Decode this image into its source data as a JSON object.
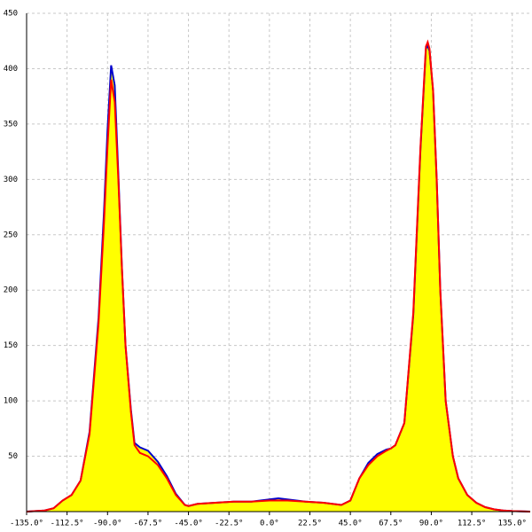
{
  "chart_data": {
    "type": "area",
    "x": [
      -135,
      -130,
      -125,
      -120,
      -115,
      -110,
      -105,
      -100,
      -95,
      -92,
      -90,
      -88,
      -86,
      -84,
      -82,
      -80,
      -77,
      -75,
      -72,
      -67.5,
      -62,
      -57,
      -52,
      -47,
      -45,
      -40,
      -30,
      -20,
      -10,
      0,
      5,
      10,
      20,
      30,
      40,
      45,
      50,
      55,
      60,
      65,
      67.5,
      70,
      75,
      80,
      84,
      87,
      88,
      89,
      91,
      93,
      95,
      98,
      102,
      105,
      110,
      115,
      120,
      125,
      130,
      135,
      145
    ],
    "series": [
      {
        "color": "#0000cc",
        "values": [
          0,
          0.5,
          1,
          3,
          10,
          15,
          28,
          72,
          175,
          270,
          345,
          403,
          385,
          305,
          220,
          150,
          92,
          62,
          58,
          55,
          45,
          32,
          16,
          6,
          5,
          7,
          8,
          9,
          9,
          11,
          12,
          11,
          9,
          8,
          6,
          10,
          30,
          44,
          52,
          56,
          57,
          60,
          80,
          178,
          328,
          418,
          421,
          416,
          380,
          300,
          200,
          100,
          50,
          30,
          15,
          8,
          4,
          2,
          1,
          0.5,
          0
        ]
      },
      {
        "color": "#ff0000",
        "values": [
          0,
          0.5,
          1,
          3,
          10,
          15,
          28,
          70,
          170,
          260,
          330,
          390,
          370,
          300,
          220,
          150,
          90,
          60,
          53,
          50,
          42,
          30,
          15,
          6,
          5,
          7,
          8,
          9,
          9,
          10,
          10,
          10,
          9,
          8,
          6,
          10,
          30,
          42,
          50,
          55,
          57,
          60,
          80,
          180,
          330,
          420,
          424,
          418,
          380,
          300,
          200,
          100,
          50,
          30,
          15,
          8,
          4,
          2,
          1,
          0.5,
          0
        ]
      }
    ],
    "area_fill": "#ffff00",
    "xlim": [
      -135,
      145
    ],
    "ylim": [
      0,
      450
    ],
    "xticks": [
      {
        "value": -135,
        "label": "-135.0°"
      },
      {
        "value": -112.5,
        "label": "-112.5°"
      },
      {
        "value": -90,
        "label": "-90.0°"
      },
      {
        "value": -67.5,
        "label": "-67.5°"
      },
      {
        "value": -45,
        "label": "-45.0°"
      },
      {
        "value": -22.5,
        "label": "-22.5°"
      },
      {
        "value": 0,
        "label": "0.0°"
      },
      {
        "value": 22.5,
        "label": "22.5°"
      },
      {
        "value": 45,
        "label": "45.0°"
      },
      {
        "value": 67.5,
        "label": "67.5°"
      },
      {
        "value": 90,
        "label": "90.0°"
      },
      {
        "value": 112.5,
        "label": "112.5°"
      },
      {
        "value": 135,
        "label": "135.0°"
      }
    ],
    "yticks": [
      50,
      100,
      150,
      200,
      250,
      300,
      350,
      400,
      450
    ],
    "grid": true
  }
}
